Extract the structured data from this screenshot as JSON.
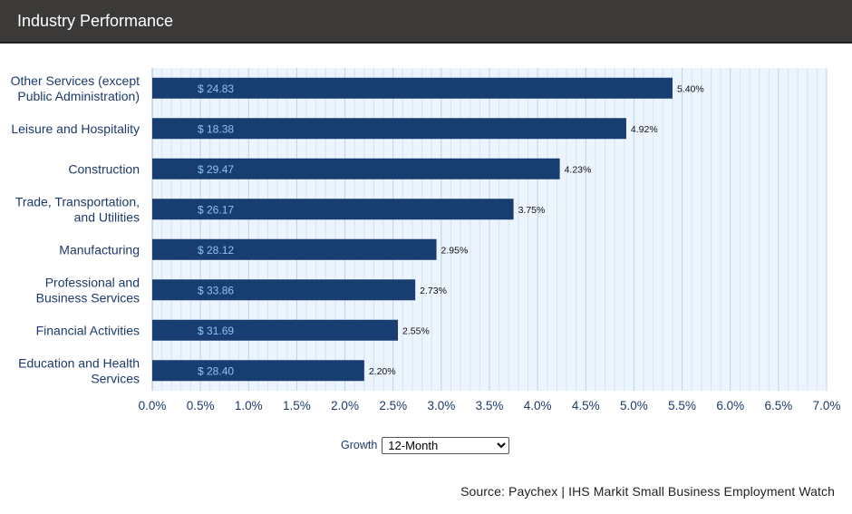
{
  "header": {
    "title": "Industry Performance"
  },
  "controls": {
    "growth_label": "Growth",
    "growth_selected": "12-Month"
  },
  "source": "Source: Paychex | IHS Markit Small Business Employment Watch",
  "colors": {
    "bar": "#183d70",
    "bar_value_text": "#8fc3f2",
    "plot_bg": "#ecf4fd",
    "grid_major": "#b7d3ee",
    "grid_minor": "#d3e4f5",
    "axis_text": "#1b3a6b"
  },
  "chart_data": {
    "type": "bar",
    "orientation": "horizontal",
    "categories": [
      [
        "Other Services (except",
        "Public Administration)"
      ],
      [
        "Leisure and Hospitality"
      ],
      [
        "Construction"
      ],
      [
        "Trade, Transportation,",
        "and Utilities"
      ],
      [
        "Manufacturing"
      ],
      [
        "Professional and",
        "Business Services"
      ],
      [
        "Financial Activities"
      ],
      [
        "Education and Health",
        "Services"
      ]
    ],
    "values": [
      5.4,
      4.92,
      4.23,
      3.75,
      2.95,
      2.73,
      2.55,
      2.2
    ],
    "value_labels": [
      "5.40%",
      "4.92%",
      "4.23%",
      "3.75%",
      "2.95%",
      "2.73%",
      "2.55%",
      "2.20%"
    ],
    "wage_labels": [
      "$ 24.83",
      "$ 18.38",
      "$ 29.47",
      "$ 26.17",
      "$ 28.12",
      "$ 33.86",
      "$ 31.69",
      "$ 28.40"
    ],
    "x_ticks": [
      "0.0%",
      "0.5%",
      "1.0%",
      "1.5%",
      "2.0%",
      "2.5%",
      "3.0%",
      "3.5%",
      "4.0%",
      "4.5%",
      "5.0%",
      "5.5%",
      "6.0%",
      "6.5%",
      "7.0%"
    ],
    "xlim": [
      0,
      7.0
    ],
    "grid": true
  }
}
